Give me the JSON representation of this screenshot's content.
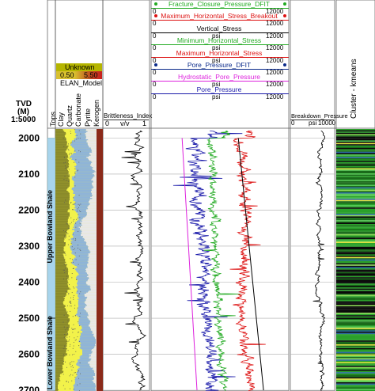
{
  "depth_track": {
    "label_line1": "TVD",
    "label_line2": "(M)",
    "label_line3": "1:5000",
    "ticks": [
      "2000",
      "2100",
      "2200",
      "2300",
      "2400",
      "2500",
      "2600",
      "2700"
    ],
    "tick_values": [
      2000,
      2100,
      2200,
      2300,
      2400,
      2500,
      2600,
      2700
    ]
  },
  "tops_track": {
    "header": "Tops",
    "zones": [
      {
        "name": "Upper Bowland Shale",
        "top": 2000,
        "base": 2500,
        "color": "#a8d4ec"
      },
      {
        "name": "Lower Bowland Shale",
        "top": 2500,
        "base": 2700,
        "color": "#a8d4ec"
      }
    ]
  },
  "elan_track": {
    "unknown_label": "Unknown",
    "scale_left": "0.50",
    "scale_right": "5.50",
    "title": "ELAN_Model",
    "columns": [
      "Clay",
      "Quartz",
      "Carbonate",
      "Pyrite",
      "Kerogen"
    ],
    "colors": {
      "clay": "#8a8a2a",
      "quartz": "#f2f24a",
      "carbonate": "#8fb4d8",
      "pyrite": "#e8e8e8",
      "kerogen": "#8b2a1a",
      "unknown": "#b5b500"
    }
  },
  "brittleness_track": {
    "title": "Brittleness_Index",
    "scale_min": "0",
    "scale_unit": "v/v",
    "scale_max": "1"
  },
  "stress_track": {
    "curves": [
      {
        "name": "Fracture_Closure_Pressure_DFIT",
        "color": "#22aa22",
        "min": "0",
        "unit": "",
        "max": "12000",
        "marker": "dot"
      },
      {
        "name": "Maximum_Horizontal_Stress_Breakout",
        "color": "#dd1111",
        "min": "0",
        "unit": "",
        "max": "12000",
        "marker": "dot"
      },
      {
        "name": "Vertical_Stress",
        "color": "#000000",
        "min": "0",
        "unit": "psi",
        "max": "12000",
        "marker": "none"
      },
      {
        "name": "Minimum_Horizontal_Stress",
        "color": "#22aa22",
        "min": "0",
        "unit": "psi",
        "max": "12000",
        "marker": "none"
      },
      {
        "name": "Maximum_Horizontal_Stress",
        "color": "#dd1111",
        "min": "0",
        "unit": "psi",
        "max": "12000",
        "marker": "none"
      },
      {
        "name": "Pore_Pressure_DFIT",
        "color": "#0a2a8a",
        "min": "0",
        "unit": "",
        "max": "12000",
        "marker": "dot"
      },
      {
        "name": "Hydrostatic_Pore_Pressure",
        "color": "#dd22dd",
        "min": "0",
        "unit": "psi",
        "max": "12000",
        "marker": "none"
      },
      {
        "name": "Pore_Pressure",
        "color": "#1a1aaa",
        "min": "0",
        "unit": "psi",
        "max": "12000",
        "marker": "none"
      }
    ],
    "vertical_stress": {
      "depth": [
        2000,
        2700
      ],
      "psi": [
        7600,
        9800
      ]
    },
    "hydrostatic": {
      "depth": [
        2000,
        2700
      ],
      "psi": [
        2700,
        4000
      ]
    },
    "pore_pressure_mean": {
      "depth": [
        2000,
        2100,
        2200,
        2300,
        2400,
        2500,
        2600,
        2700
      ],
      "psi": [
        3800,
        3900,
        4100,
        4400,
        4600,
        4900,
        5200,
        5400
      ]
    },
    "min_horizontal_mean": {
      "depth": [
        2000,
        2100,
        2200,
        2300,
        2400,
        2500,
        2600,
        2700
      ],
      "psi": [
        5200,
        5400,
        5500,
        5600,
        5600,
        5900,
        6100,
        6400
      ]
    },
    "max_horizontal_mean": {
      "depth": [
        2000,
        2100,
        2200,
        2300,
        2400,
        2500,
        2600,
        2700
      ],
      "psi": [
        7600,
        8100,
        8200,
        8200,
        8000,
        7800,
        8300,
        8900
      ]
    }
  },
  "breakdown_track": {
    "title": "Breakdown_Pressure",
    "scale_min": "0",
    "scale_unit": "psi",
    "scale_max": "10000"
  },
  "cluster_track": {
    "title": "Cluster - kmeans",
    "colors": [
      "#0a0a0a",
      "#1a6a1a",
      "#2aa02a",
      "#55c855",
      "#8fdc5a",
      "#2a6aa0",
      "#e0e040"
    ]
  }
}
